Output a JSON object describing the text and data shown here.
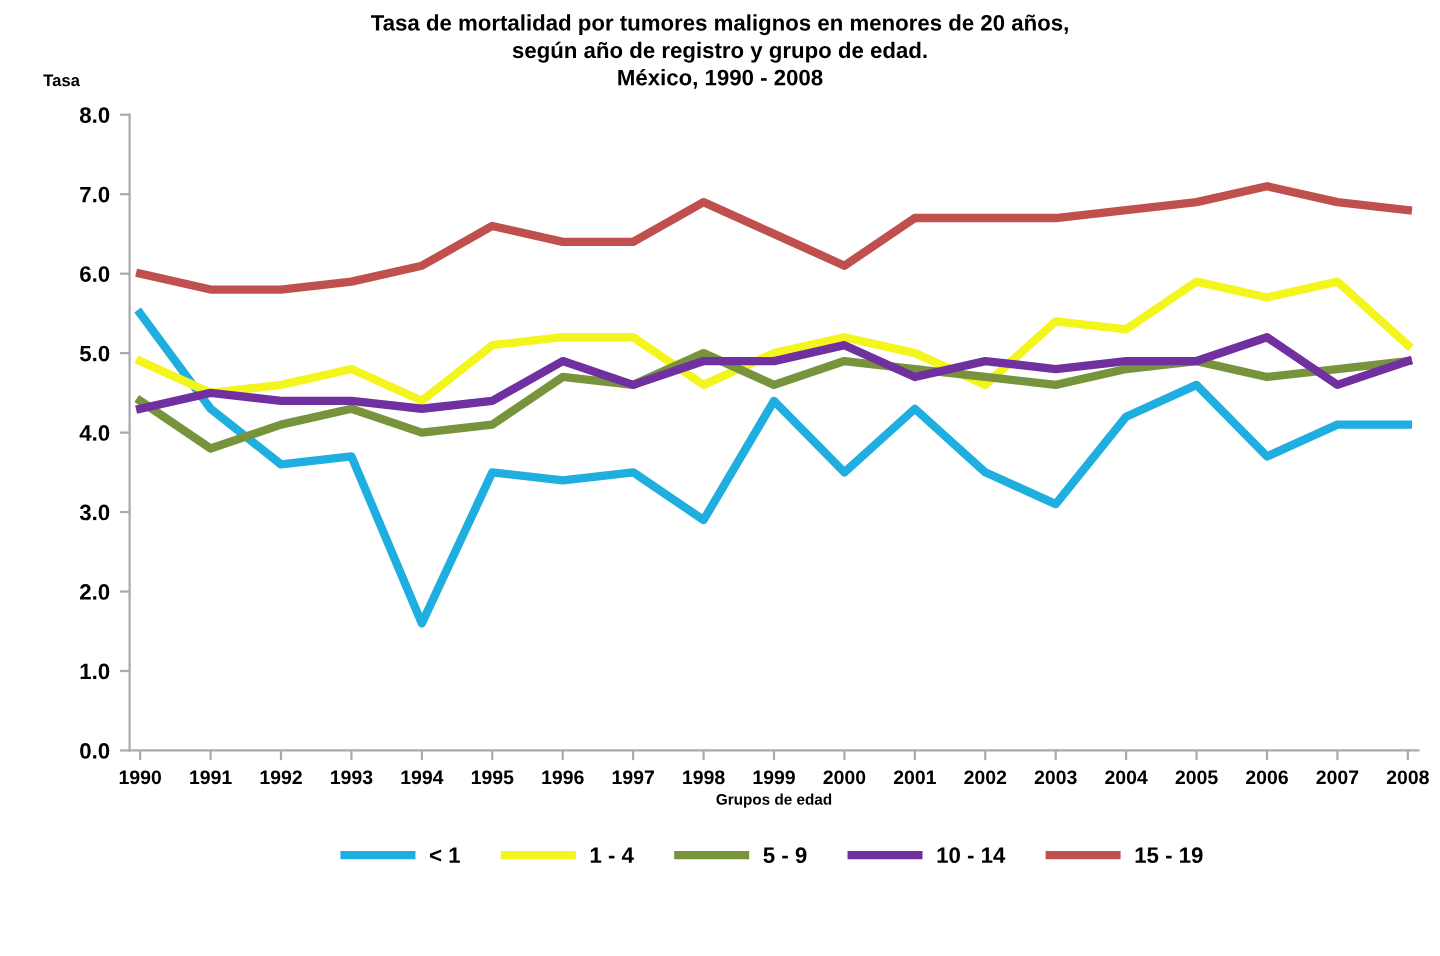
{
  "chart_data": {
    "type": "line",
    "title": "Tasa de mortalidad por tumores malignos en menores de 20 años,\nsegún año de registro y grupo de edad.\nMéxico, 1990 - 2008",
    "ylabel": "Tasa",
    "xlabel": "Grupos de edad",
    "categories": [
      "1990",
      "1991",
      "1992",
      "1993",
      "1994",
      "1995",
      "1996",
      "1997",
      "1998",
      "1999",
      "2000",
      "2001",
      "2002",
      "2003",
      "2004",
      "2005",
      "2006",
      "2007",
      "2008"
    ],
    "ylim": [
      0,
      8
    ],
    "yticks": [
      {
        "value": 0,
        "label": "0.0"
      },
      {
        "value": 1,
        "label": "1.0"
      },
      {
        "value": 2,
        "label": "2.0"
      },
      {
        "value": 3,
        "label": "3.0"
      },
      {
        "value": 4,
        "label": "4.0"
      },
      {
        "value": 5,
        "label": "5.0"
      },
      {
        "value": 6,
        "label": "6.0"
      },
      {
        "value": 7,
        "label": "7.0"
      },
      {
        "value": 8,
        "label": "8.0"
      }
    ],
    "grid": false,
    "legend": "bottom",
    "marker": "none",
    "line_style": "solid",
    "series": [
      {
        "name": "< 1",
        "color": "#1eaee0",
        "values": [
          5.5,
          4.3,
          3.6,
          3.7,
          1.6,
          3.5,
          3.4,
          3.5,
          2.9,
          4.4,
          3.5,
          4.3,
          3.5,
          3.1,
          4.2,
          4.6,
          3.7,
          4.1,
          4.1
        ]
      },
      {
        "name": "1 - 4",
        "color": "#f5f51e",
        "values": [
          4.9,
          4.5,
          4.6,
          4.8,
          4.4,
          5.1,
          5.2,
          5.2,
          4.6,
          5.0,
          5.2,
          5.0,
          4.6,
          5.4,
          5.3,
          5.9,
          5.7,
          5.9,
          5.1
        ]
      },
      {
        "name": "5 - 9",
        "color": "#77933c",
        "values": [
          4.4,
          3.8,
          4.1,
          4.3,
          4.0,
          4.1,
          4.7,
          4.6,
          5.0,
          4.6,
          4.9,
          4.8,
          4.7,
          4.6,
          4.8,
          4.9,
          4.7,
          4.8,
          4.9
        ]
      },
      {
        "name": "10 - 14",
        "color": "#7030a0",
        "values": [
          4.3,
          4.5,
          4.4,
          4.4,
          4.3,
          4.4,
          4.9,
          4.6,
          4.9,
          4.9,
          5.1,
          4.7,
          4.9,
          4.8,
          4.9,
          4.9,
          5.2,
          4.6,
          4.9
        ]
      },
      {
        "name": "15 - 19",
        "color": "#c0504d",
        "values": [
          6.0,
          5.8,
          5.8,
          5.9,
          6.1,
          6.6,
          6.4,
          6.4,
          6.9,
          6.5,
          6.1,
          6.7,
          6.7,
          6.7,
          6.8,
          6.9,
          7.1,
          6.9,
          6.8
        ]
      }
    ]
  }
}
